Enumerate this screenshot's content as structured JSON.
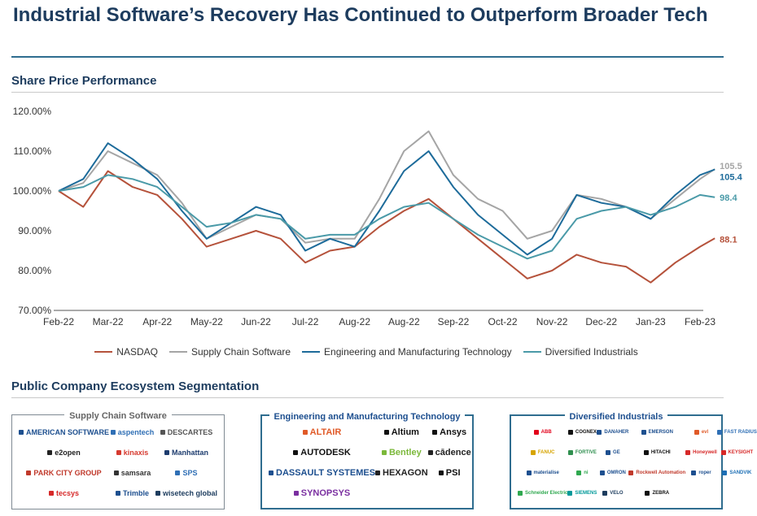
{
  "page": {
    "title": "Industrial Software’s Recovery Has Continued to Outperform Broader Tech",
    "section1": "Share Price Performance",
    "section2": "Public Company Ecosystem Segmentation"
  },
  "chart_data": {
    "type": "line",
    "title": "",
    "xlabel": "",
    "ylabel": "",
    "ylim": [
      70,
      120
    ],
    "y_ticks": [
      70,
      80,
      90,
      100,
      110,
      120
    ],
    "y_tick_labels": [
      "70.00%",
      "80.00%",
      "90.00%",
      "100.00%",
      "110.00%",
      "120.00%"
    ],
    "x_tick_labels": [
      "Feb-22",
      "Mar-22",
      "Apr-22",
      "May-22",
      "Jun-22",
      "Jul-22",
      "Aug-22",
      "Aug-22",
      "Sep-22",
      "Oct-22",
      "Nov-22",
      "Dec-22",
      "Jan-23",
      "Feb-23"
    ],
    "grid": false,
    "legend_position": "bottom",
    "x": [
      0,
      0.5,
      1,
      1.5,
      2,
      2.5,
      3,
      3.5,
      4,
      4.5,
      5,
      5.5,
      6,
      6.5,
      7,
      7.5,
      8,
      8.5,
      9,
      9.5,
      10,
      10.5,
      11,
      11.5,
      12,
      12.5,
      13,
      13.3
    ],
    "series": [
      {
        "name": "NASDAQ",
        "color": "#b5523b",
        "end_label": "88.1",
        "values": [
          100,
          96,
          105,
          101,
          99,
          93,
          86,
          88,
          90,
          88,
          82,
          85,
          86,
          91,
          95,
          98,
          93,
          88,
          83,
          78,
          80,
          84,
          82,
          81,
          77,
          82,
          86,
          88.1
        ]
      },
      {
        "name": "Supply Chain Software",
        "color": "#a5a5a5",
        "end_label": "105.5",
        "values": [
          100,
          102,
          110,
          107,
          104,
          97,
          88,
          91,
          94,
          93,
          87,
          88,
          88,
          98,
          110,
          115,
          104,
          98,
          95,
          88,
          90,
          99,
          98,
          96,
          93,
          98,
          103,
          105.5
        ]
      },
      {
        "name": "Engineering and Manufacturing Technology",
        "color": "#1d6b9a",
        "end_label": "105.4",
        "values": [
          100,
          103,
          112,
          108,
          103,
          95,
          88,
          92,
          96,
          94,
          85,
          88,
          86,
          95,
          105,
          110,
          101,
          94,
          89,
          84,
          88,
          99,
          97,
          96,
          93,
          99,
          104,
          105.4
        ]
      },
      {
        "name": "Diversified Industrials",
        "color": "#4a9aa8",
        "end_label": "98.4",
        "values": [
          100,
          101,
          104,
          103,
          101,
          96,
          91,
          92,
          94,
          93,
          88,
          89,
          89,
          93,
          96,
          97,
          93,
          89,
          86,
          83,
          85,
          93,
          95,
          96,
          94,
          96,
          99,
          98.4
        ]
      }
    ]
  },
  "ecosystem": {
    "supply_chain": {
      "title": "Supply Chain Software",
      "logos": [
        {
          "name": "AMERICAN SOFTWARE",
          "color": "#1d4f8f"
        },
        {
          "name": "aspentech",
          "color": "#2f6fb5"
        },
        {
          "name": "DESCARTES",
          "color": "#555555"
        },
        {
          "name": "e2open",
          "color": "#222222"
        },
        {
          "name": "kinaxis",
          "color": "#d63a2f"
        },
        {
          "name": "Manhattan",
          "color": "#1d3c6e"
        },
        {
          "name": "PARK CITY GROUP",
          "color": "#c0392b"
        },
        {
          "name": "samsara",
          "color": "#333333"
        },
        {
          "name": "SPS",
          "color": "#2f6fb5"
        },
        {
          "name": "tecsys",
          "color": "#d62828"
        },
        {
          "name": "Trimble",
          "color": "#1d4f8f"
        },
        {
          "name": "wisetech global",
          "color": "#1d3c5e"
        }
      ]
    },
    "engineering": {
      "title": "Engineering and Manufacturing Technology",
      "logos": [
        {
          "name": "ALTAIR",
          "color": "#e05a28"
        },
        {
          "name": "Altium",
          "color": "#111111"
        },
        {
          "name": "Ansys",
          "color": "#111111"
        },
        {
          "name": "AUTODESK",
          "color": "#111111"
        },
        {
          "name": "Bentley",
          "color": "#7bb83a"
        },
        {
          "name": "cādence",
          "color": "#222222"
        },
        {
          "name": "DASSAULT SYSTEMES",
          "color": "#1d4f8f"
        },
        {
          "name": "HEXAGON",
          "color": "#222222"
        },
        {
          "name": "PSI",
          "color": "#111111"
        },
        {
          "name": "SYNOPSYS",
          "color": "#7a2ea0"
        }
      ]
    },
    "industrials": {
      "title": "Diversified Industrials",
      "logos": [
        {
          "name": "ABB",
          "color": "#e2001a"
        },
        {
          "name": "COGNEX",
          "color": "#111111"
        },
        {
          "name": "DANAHER",
          "color": "#1d4f8f"
        },
        {
          "name": "EMERSON",
          "color": "#1d4f8f"
        },
        {
          "name": "evl",
          "color": "#e05a28"
        },
        {
          "name": "FAST RADIUS",
          "color": "#2f6fb5"
        },
        {
          "name": "FANUC",
          "color": "#d6a400"
        },
        {
          "name": "FORTIVE",
          "color": "#2f8f4f"
        },
        {
          "name": "GE",
          "color": "#1d4f8f"
        },
        {
          "name": "HITACHI",
          "color": "#111111"
        },
        {
          "name": "Honeywell",
          "color": "#d62828"
        },
        {
          "name": "KEYSIGHT",
          "color": "#d62828"
        },
        {
          "name": "materialise",
          "color": "#1d4f8f"
        },
        {
          "name": "ni",
          "color": "#2fa84f"
        },
        {
          "name": "OMRON",
          "color": "#1d4f8f"
        },
        {
          "name": "Rockwell Automation",
          "color": "#c0392b"
        },
        {
          "name": "roper",
          "color": "#1d4f8f"
        },
        {
          "name": "SANDVIK",
          "color": "#1d6fb5"
        },
        {
          "name": "Schneider Electric",
          "color": "#2fa84f"
        },
        {
          "name": "SIEMENS",
          "color": "#009999"
        },
        {
          "name": "VELO",
          "color": "#1d3c5e"
        },
        {
          "name": "ZEBRA",
          "color": "#111111"
        }
      ]
    }
  }
}
